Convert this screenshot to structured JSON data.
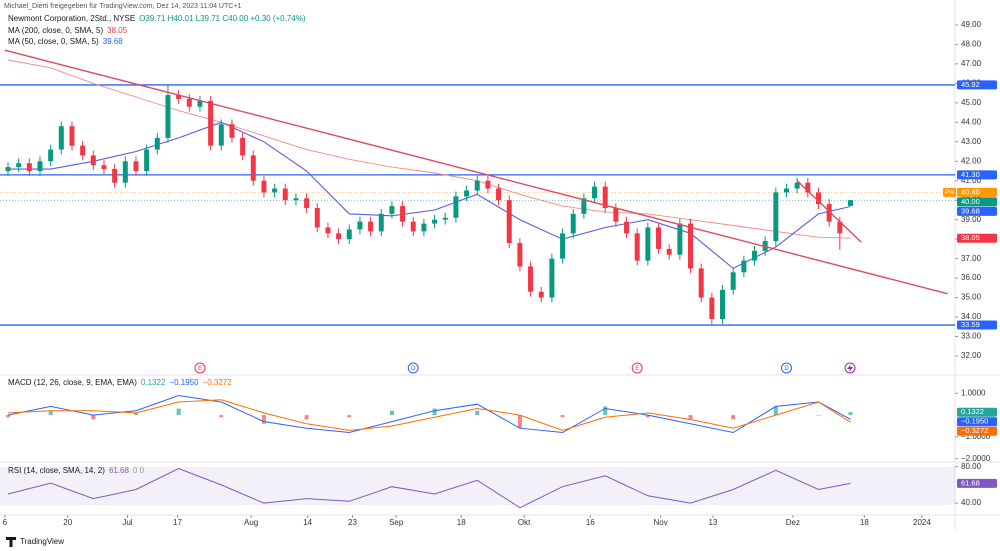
{
  "header": {
    "shared_by": "Michael_Dierti freigegeben für TradingView.com, Dez 14, 2023 11:04 UTC+1",
    "symbol": "Newmont Corporation, 2Std., NYSE",
    "quote": "O39.71 H40.01 L39.71 C40.00 +0.30 (+0.74%)"
  },
  "footer": {
    "brand": "TradingView"
  },
  "chart_data": [
    {
      "type": "candlestick",
      "up_color": "#089981",
      "down_color": "#f23645",
      "candles": [
        [
          41.5,
          41.95,
          41.25,
          41.7
        ],
        [
          41.7,
          42.15,
          41.45,
          41.9
        ],
        [
          41.9,
          42.15,
          41.25,
          41.5
        ],
        [
          41.5,
          42.25,
          41.25,
          42.0
        ],
        [
          42.0,
          42.85,
          41.75,
          42.6
        ],
        [
          42.6,
          44.05,
          42.35,
          43.8
        ],
        [
          43.8,
          44.05,
          42.55,
          42.8
        ],
        [
          42.8,
          43.05,
          42.05,
          42.3
        ],
        [
          42.3,
          42.55,
          41.55,
          41.8
        ],
        [
          41.8,
          42.05,
          41.35,
          41.6
        ],
        [
          41.6,
          41.85,
          40.65,
          40.9
        ],
        [
          40.9,
          42.25,
          40.65,
          42.0
        ],
        [
          42.0,
          42.25,
          41.25,
          41.5
        ],
        [
          41.5,
          42.85,
          41.25,
          42.6
        ],
        [
          42.6,
          43.45,
          42.35,
          43.2
        ],
        [
          43.2,
          45.9,
          42.95,
          45.4
        ],
        [
          45.4,
          45.65,
          44.95,
          45.2
        ],
        [
          45.2,
          45.45,
          44.55,
          44.8
        ],
        [
          44.8,
          45.35,
          44.55,
          45.1
        ],
        [
          45.1,
          45.35,
          42.55,
          42.8
        ],
        [
          42.8,
          44.15,
          42.55,
          43.9
        ],
        [
          43.9,
          44.15,
          42.95,
          43.2
        ],
        [
          43.2,
          43.45,
          42.05,
          42.3
        ],
        [
          42.3,
          42.55,
          40.75,
          41.0
        ],
        [
          41.0,
          41.25,
          40.15,
          40.4
        ],
        [
          40.4,
          40.85,
          40.15,
          40.6
        ],
        [
          40.6,
          40.85,
          39.75,
          40.0
        ],
        [
          40.0,
          40.35,
          39.75,
          40.1
        ],
        [
          40.1,
          40.35,
          39.35,
          39.6
        ],
        [
          39.6,
          39.85,
          38.35,
          38.6
        ],
        [
          38.6,
          38.85,
          38.05,
          38.3
        ],
        [
          38.3,
          38.55,
          37.75,
          38.0
        ],
        [
          38.0,
          38.75,
          37.75,
          38.5
        ],
        [
          38.5,
          39.15,
          38.25,
          38.9
        ],
        [
          38.9,
          39.15,
          38.15,
          38.4
        ],
        [
          38.4,
          39.55,
          38.15,
          39.3
        ],
        [
          39.3,
          39.95,
          39.05,
          39.7
        ],
        [
          39.7,
          39.95,
          38.65,
          38.9
        ],
        [
          38.9,
          39.15,
          38.15,
          38.4
        ],
        [
          38.4,
          39.05,
          38.15,
          38.8
        ],
        [
          38.8,
          39.25,
          38.55,
          39.0
        ],
        [
          39.0,
          39.35,
          38.75,
          39.1
        ],
        [
          39.1,
          40.45,
          38.85,
          40.2
        ],
        [
          40.2,
          40.75,
          39.95,
          40.5
        ],
        [
          40.5,
          41.25,
          40.25,
          41.0
        ],
        [
          41.0,
          41.25,
          40.35,
          40.6
        ],
        [
          40.6,
          40.85,
          39.75,
          40.0
        ],
        [
          40.0,
          40.25,
          37.55,
          37.8
        ],
        [
          37.8,
          38.05,
          36.35,
          36.6
        ],
        [
          36.6,
          36.85,
          35.05,
          35.3
        ],
        [
          35.3,
          35.55,
          34.75,
          35.0
        ],
        [
          35.0,
          37.25,
          34.75,
          37.0
        ],
        [
          37.0,
          38.55,
          36.75,
          38.3
        ],
        [
          38.3,
          39.55,
          38.05,
          39.3
        ],
        [
          39.3,
          40.35,
          39.05,
          40.1
        ],
        [
          40.1,
          40.95,
          39.85,
          40.7
        ],
        [
          40.7,
          40.95,
          39.35,
          39.6
        ],
        [
          39.6,
          39.85,
          38.65,
          38.9
        ],
        [
          38.9,
          39.15,
          38.05,
          38.3
        ],
        [
          38.3,
          38.55,
          36.65,
          36.9
        ],
        [
          36.9,
          38.85,
          36.65,
          38.6
        ],
        [
          38.6,
          38.85,
          37.25,
          37.5
        ],
        [
          37.5,
          37.75,
          36.95,
          37.2
        ],
        [
          37.2,
          39.05,
          36.95,
          38.8
        ],
        [
          38.8,
          39.05,
          36.25,
          36.5
        ],
        [
          36.5,
          36.75,
          34.75,
          35.0
        ],
        [
          35.0,
          35.25,
          33.65,
          33.9
        ],
        [
          33.9,
          35.65,
          33.65,
          35.4
        ],
        [
          35.4,
          36.55,
          35.15,
          36.3
        ],
        [
          36.3,
          37.15,
          36.05,
          36.9
        ],
        [
          36.9,
          37.65,
          36.65,
          37.4
        ],
        [
          37.4,
          38.15,
          37.15,
          37.9
        ],
        [
          37.9,
          40.65,
          37.65,
          40.4
        ],
        [
          40.4,
          40.85,
          40.15,
          40.6
        ],
        [
          40.6,
          41.15,
          40.35,
          40.9
        ],
        [
          40.9,
          41.15,
          40.15,
          40.4
        ],
        [
          40.4,
          40.65,
          39.55,
          39.8
        ],
        [
          39.8,
          40.05,
          38.65,
          38.9
        ],
        [
          38.9,
          39.15,
          37.45,
          38.3
        ],
        [
          39.71,
          40.01,
          39.71,
          40.0
        ]
      ],
      "last_price_label": "40.00",
      "ylim": [
        31.18,
        50.28
      ],
      "yticks": [
        {
          "value": 32,
          "label": "32.00"
        },
        {
          "value": 33,
          "label": "33.00"
        },
        {
          "value": 34,
          "label": "34.00"
        },
        {
          "value": 35,
          "label": "35.00"
        },
        {
          "value": 36,
          "label": "36.00"
        },
        {
          "value": 37,
          "label": "37.00"
        },
        {
          "value": 38,
          "label": "38.00"
        },
        {
          "value": 39,
          "label": "39.00"
        },
        {
          "value": 40,
          "label": "40.00"
        },
        {
          "value": 41,
          "label": "41.00"
        },
        {
          "value": 42,
          "label": "42.00"
        },
        {
          "value": 43,
          "label": "43.00"
        },
        {
          "value": 44,
          "label": "44.00"
        },
        {
          "value": 45,
          "label": "45.00"
        },
        {
          "value": 46,
          "label": "46.00"
        },
        {
          "value": 47,
          "label": "47.00"
        },
        {
          "value": 48,
          "label": "48.00"
        },
        {
          "value": 49,
          "label": "49.00"
        }
      ],
      "xlim": [
        -0.75,
        88.8
      ],
      "xticks": [
        {
          "value": -0.3,
          "label": "6"
        },
        {
          "value": 5.6,
          "label": "20"
        },
        {
          "value": 11.2,
          "label": "Jul"
        },
        {
          "value": 15.9,
          "label": "17"
        },
        {
          "value": 22.8,
          "label": "Aug"
        },
        {
          "value": 28.1,
          "label": "14"
        },
        {
          "value": 32.3,
          "label": "23"
        },
        {
          "value": 36.4,
          "label": "Sep"
        },
        {
          "value": 42.5,
          "label": "18"
        },
        {
          "value": 48.4,
          "label": "Okt"
        },
        {
          "value": 54.6,
          "label": "16"
        },
        {
          "value": 61.2,
          "label": "Nov"
        },
        {
          "value": 66.1,
          "label": "13"
        },
        {
          "value": 73.6,
          "label": "Dez"
        },
        {
          "value": 80.3,
          "label": "18"
        },
        {
          "value": 85.7,
          "label": "2024"
        }
      ],
      "moving_averages": [
        {
          "name": "MA (200, close, 0, SMA, 5)",
          "color": "#f28b82",
          "x": [
            0,
            4,
            8,
            12,
            16,
            20,
            24,
            28,
            32,
            36,
            40,
            44,
            48,
            52,
            56,
            60,
            64,
            68,
            72,
            76,
            79
          ],
          "values": [
            47.2,
            46.8,
            46.0,
            45.3,
            44.6,
            44.0,
            43.3,
            42.6,
            42.1,
            41.7,
            41.4,
            41.0,
            40.3,
            39.7,
            39.4,
            39.3,
            39.0,
            38.7,
            38.4,
            38.1,
            38.05
          ]
        },
        {
          "name": "MA (50, close, 0, SMA, 5)",
          "color": "#5c5ce0",
          "x": [
            0,
            4,
            8,
            12,
            16,
            20,
            24,
            28,
            32,
            36,
            40,
            44,
            48,
            52,
            56,
            60,
            64,
            68,
            72,
            76,
            79
          ],
          "values": [
            41.6,
            41.6,
            42.0,
            42.5,
            43.2,
            44.0,
            43.0,
            41.5,
            39.3,
            39.2,
            39.5,
            40.3,
            39.0,
            38.0,
            38.6,
            39.0,
            38.3,
            36.5,
            37.6,
            39.3,
            39.68
          ]
        }
      ],
      "levels": {
        "color": "#2962ff",
        "values": [
          {
            "value": 45.92,
            "label": "45.92"
          },
          {
            "value": 41.3,
            "label": "41.30"
          },
          {
            "value": 33.59,
            "label": "33.59"
          }
        ]
      },
      "trendlines": {
        "color": "#e04a5f",
        "lines": [
          {
            "x": [
              -0.3,
              88.1
            ],
            "values": [
              47.7,
              35.2
            ]
          },
          {
            "x": [
              74,
              80
            ],
            "values": [
              41.0,
              37.85
            ]
          }
        ]
      },
      "premarket": {
        "label": "Pre",
        "value": 40.4,
        "value_label": "40.40",
        "color": "#ff9800"
      },
      "events": [
        {
          "x": 18,
          "label": "E",
          "color": "#f23645"
        },
        {
          "x": 38,
          "label": "D",
          "color": "#2962ff"
        },
        {
          "x": 59,
          "label": "E",
          "color": "#f23645"
        },
        {
          "x": 73,
          "label": "D",
          "color": "#2962ff"
        }
      ]
    },
    {
      "type": "macd",
      "title": "MACD (12, 26, close, 9, EMA, EMA)",
      "x": [
        0,
        4,
        8,
        12,
        16,
        20,
        24,
        28,
        32,
        36,
        40,
        44,
        48,
        52,
        56,
        60,
        64,
        68,
        72,
        76,
        79
      ],
      "ylim": [
        -2.15,
        1.7
      ],
      "yticks": [
        {
          "value": 1,
          "label": "1.0000"
        },
        {
          "value": -1,
          "label": "−1.0000"
        },
        {
          "value": -2,
          "label": "−2.0000"
        }
      ],
      "histogram": {
        "up_color": "#26a69a",
        "down_color": "#ef5350",
        "values": [
          -0.1,
          0.2,
          -0.2,
          0.1,
          0.3,
          -0.1,
          -0.4,
          -0.2,
          -0.1,
          0.2,
          0.3,
          0.2,
          -0.6,
          -0.1,
          0.4,
          -0.1,
          -0.2,
          -0.2,
          0.4,
          0.0,
          0.1322
        ]
      },
      "macd": {
        "color": "#2962ff",
        "values": [
          0.0,
          0.4,
          0.0,
          0.2,
          0.9,
          0.6,
          -0.3,
          -0.6,
          -0.8,
          -0.3,
          0.2,
          0.5,
          -0.6,
          -0.8,
          0.3,
          0.0,
          -0.4,
          -0.8,
          0.4,
          0.6,
          -0.195
        ],
        "value_label": "−0.1950"
      },
      "signal": {
        "color": "#ff6d00",
        "values": [
          0.1,
          0.2,
          0.2,
          0.1,
          0.6,
          0.7,
          0.1,
          -0.4,
          -0.7,
          -0.5,
          -0.1,
          0.3,
          0.0,
          -0.7,
          -0.1,
          0.1,
          -0.2,
          -0.6,
          0.0,
          0.6,
          -0.3272
        ],
        "value_label": "−0.3272"
      }
    },
    {
      "type": "line",
      "title": "RSI (14, close, SMA, 14, 2)",
      "legend_suffix": "0 0",
      "color": "#7e57c2",
      "x": [
        0,
        4,
        8,
        12,
        16,
        20,
        24,
        28,
        32,
        36,
        40,
        44,
        48,
        52,
        56,
        60,
        64,
        68,
        72,
        76,
        79
      ],
      "values": [
        50,
        62,
        45,
        55,
        78,
        60,
        40,
        45,
        42,
        58,
        50,
        65,
        35,
        58,
        70,
        48,
        40,
        55,
        76,
        55,
        61.68
      ],
      "ylim": [
        27,
        84
      ],
      "yticks": [
        {
          "value": 80,
          "label": "80.00"
        },
        {
          "value": 40,
          "label": "40.00"
        }
      ]
    }
  ]
}
